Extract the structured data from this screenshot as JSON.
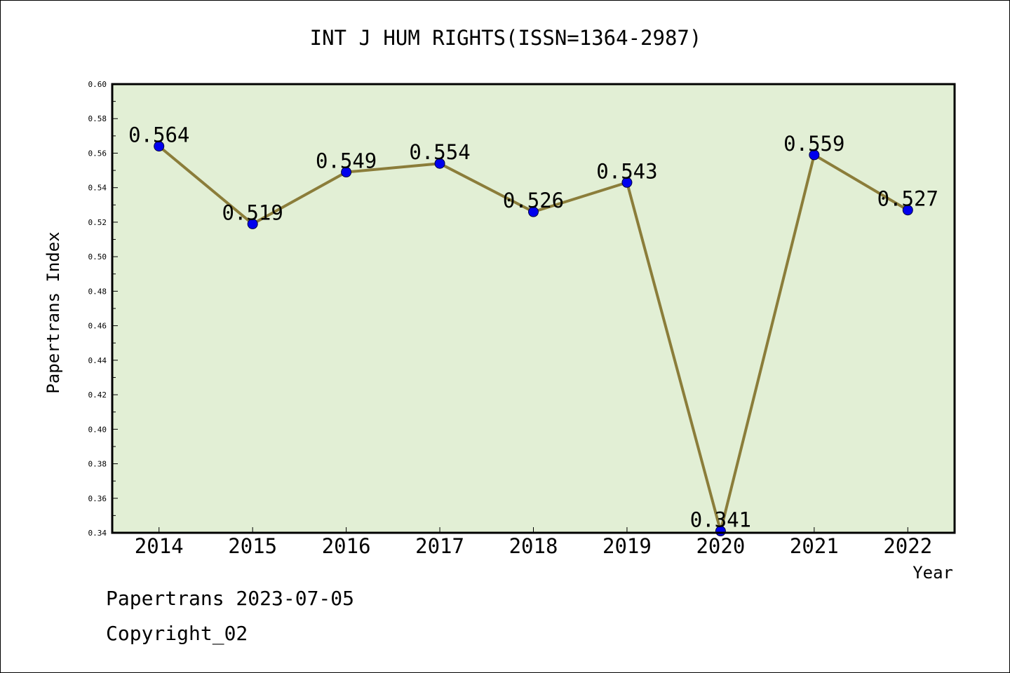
{
  "chart_data": {
    "type": "line",
    "title": "INT J HUM RIGHTS(ISSN=1364-2987)",
    "xlabel": "Year",
    "ylabel": "Papertrans Index",
    "categories": [
      "2014",
      "2015",
      "2016",
      "2017",
      "2018",
      "2019",
      "2020",
      "2021",
      "2022"
    ],
    "series": [
      {
        "values": [
          0.564,
          0.519,
          0.549,
          0.554,
          0.526,
          0.543,
          0.341,
          0.559,
          0.527
        ]
      }
    ],
    "data_labels": [
      "0.564",
      "0.519",
      "0.549",
      "0.554",
      "0.526",
      "0.543",
      "0.341",
      "0.559",
      "0.527"
    ],
    "ylim": [
      0.34,
      0.6
    ],
    "y_ticks": [
      "0.34",
      "0.36",
      "0.38",
      "0.40",
      "0.42",
      "0.44",
      "0.46",
      "0.48",
      "0.50",
      "0.52",
      "0.54",
      "0.56",
      "0.58",
      "0.60"
    ],
    "grid": false,
    "legend": "none",
    "colors": {
      "plot_background": "#e2efd5",
      "line": "#8b7d3a",
      "marker": "#0000ee",
      "frame": "#000000"
    }
  },
  "footer": {
    "line1": "Papertrans 2023-07-05",
    "line2": "Copyright_02"
  }
}
